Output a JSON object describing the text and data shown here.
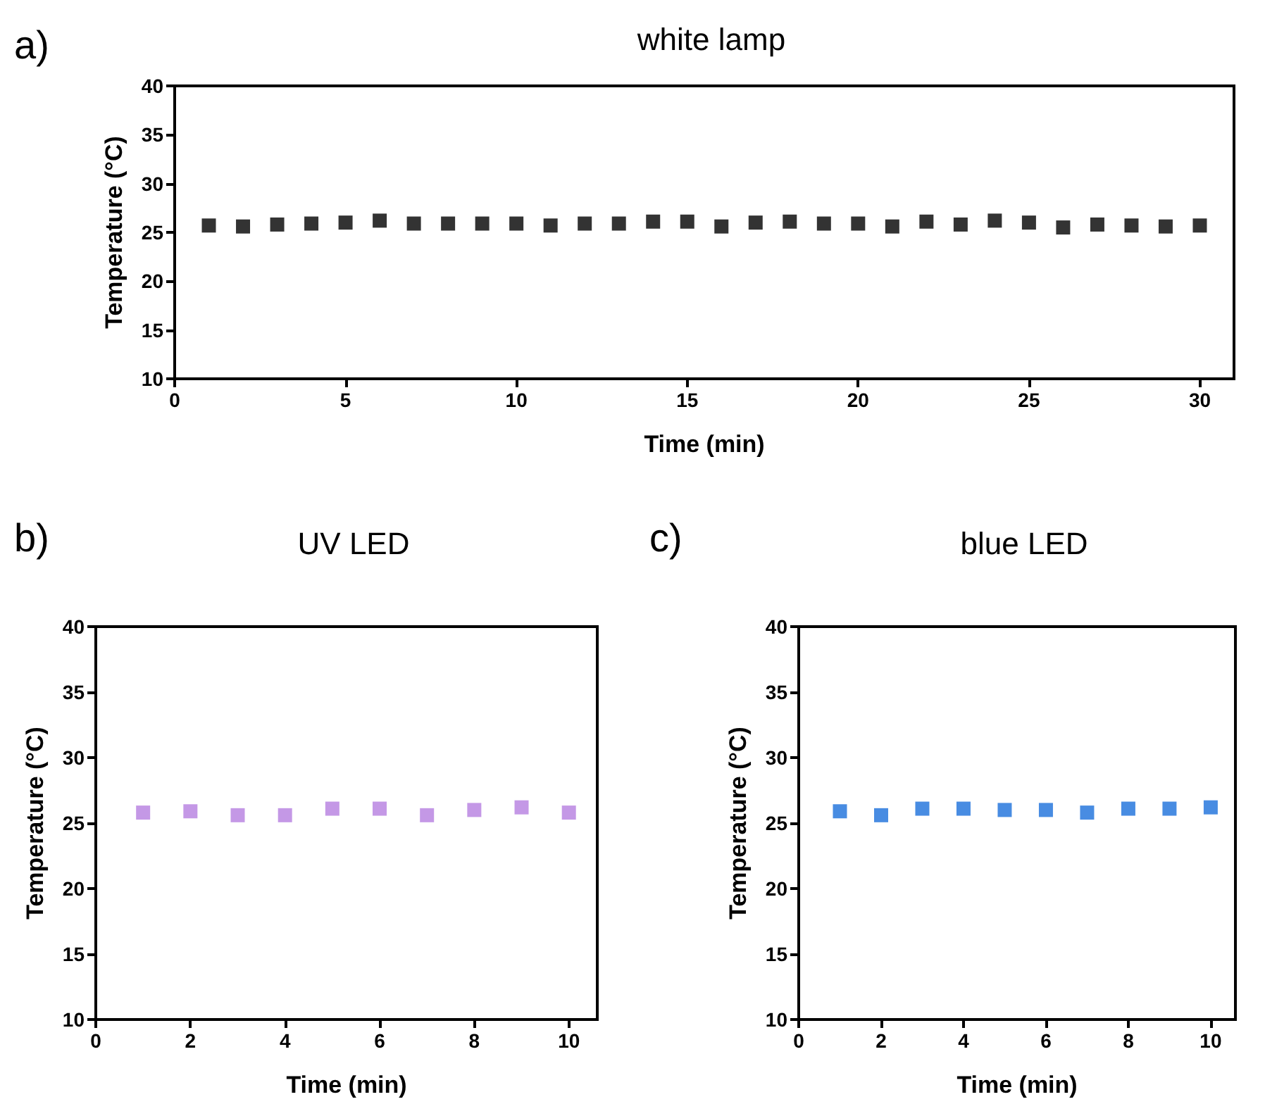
{
  "chart_data": [
    {
      "type": "scatter",
      "title": "white lamp",
      "annotations": [
        "a)"
      ],
      "xlabel": "Time (min)",
      "ylabel": "Temperature (°C)",
      "marker": "square",
      "xlim": [
        0,
        31
      ],
      "xticks": [
        0,
        5,
        10,
        15,
        20,
        25,
        30
      ],
      "ylim": [
        10,
        40
      ],
      "yticks": [
        10,
        15,
        20,
        25,
        30,
        35,
        40
      ],
      "x": [
        1,
        2,
        3,
        4,
        5,
        6,
        7,
        8,
        9,
        10,
        11,
        12,
        13,
        14,
        15,
        16,
        17,
        18,
        19,
        20,
        21,
        22,
        23,
        24,
        25,
        26,
        27,
        28,
        29,
        30
      ],
      "series": [
        {
          "color": "#000000",
          "values": [
            25.7,
            25.6,
            25.8,
            25.9,
            26.0,
            26.2,
            25.9,
            25.9,
            25.9,
            25.9,
            25.7,
            25.9,
            25.9,
            26.1,
            26.1,
            25.6,
            26.0,
            26.1,
            25.9,
            25.9,
            25.6,
            26.1,
            25.8,
            26.2,
            26.0,
            25.5,
            25.8,
            25.7,
            25.6,
            25.7
          ]
        }
      ]
    },
    {
      "type": "scatter",
      "title": "UV LED",
      "annotations": [
        "b)"
      ],
      "xlabel": "Time (min)",
      "ylabel": "Temperature (°C)",
      "marker": "square",
      "xlim": [
        0,
        10.6
      ],
      "xticks": [
        0,
        2,
        4,
        6,
        8,
        10
      ],
      "ylim": [
        10,
        40
      ],
      "yticks": [
        10,
        15,
        20,
        25,
        30,
        35,
        40
      ],
      "x": [
        1,
        2,
        3,
        4,
        5,
        6,
        7,
        8,
        9,
        10
      ],
      "series": [
        {
          "color": "#b57ee0",
          "values": [
            25.8,
            25.9,
            25.6,
            25.6,
            26.1,
            26.1,
            25.6,
            26.0,
            26.2,
            25.8
          ]
        }
      ]
    },
    {
      "type": "scatter",
      "title": "blue LED",
      "annotations": [
        "c)"
      ],
      "xlabel": "Time (min)",
      "ylabel": "Temperature (°C)",
      "marker": "square",
      "xlim": [
        0,
        10.6
      ],
      "xticks": [
        0,
        2,
        4,
        6,
        8,
        10
      ],
      "ylim": [
        10,
        40
      ],
      "yticks": [
        10,
        15,
        20,
        25,
        30,
        35,
        40
      ],
      "x": [
        1,
        2,
        3,
        4,
        5,
        6,
        7,
        8,
        9,
        10
      ],
      "series": [
        {
          "color": "#1a6fdb",
          "values": [
            25.9,
            25.6,
            26.1,
            26.1,
            26.0,
            26.0,
            25.8,
            26.1,
            26.1,
            26.2
          ]
        }
      ]
    }
  ]
}
